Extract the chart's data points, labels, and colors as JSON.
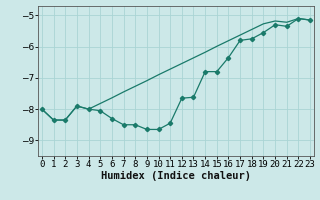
{
  "xlabel": "Humidex (Indice chaleur)",
  "background_color": "#cce8e8",
  "grid_color": "#aad4d4",
  "line_color": "#1a7a6a",
  "x_data": [
    0,
    1,
    2,
    3,
    4,
    5,
    6,
    7,
    8,
    9,
    10,
    11,
    12,
    13,
    14,
    15,
    16,
    17,
    18,
    19,
    20,
    21,
    22,
    23
  ],
  "y_line1": [
    -8.0,
    -8.35,
    -8.35,
    -7.9,
    -8.0,
    -8.05,
    -8.3,
    -8.5,
    -8.5,
    -8.65,
    -8.65,
    -8.45,
    -7.65,
    -7.62,
    -6.8,
    -6.8,
    -6.35,
    -5.8,
    -5.75,
    -5.55,
    -5.3,
    -5.35,
    -5.1,
    -5.15
  ],
  "y_line2": [
    -8.0,
    -8.35,
    -8.35,
    -7.9,
    -8.0,
    -7.82,
    -7.64,
    -7.45,
    -7.27,
    -7.09,
    -6.9,
    -6.72,
    -6.54,
    -6.36,
    -6.18,
    -5.99,
    -5.81,
    -5.63,
    -5.45,
    -5.27,
    -5.18,
    -5.22,
    -5.1,
    -5.15
  ],
  "ylim": [
    -9.5,
    -4.7
  ],
  "xlim": [
    -0.3,
    23.3
  ],
  "yticks": [
    -9,
    -8,
    -7,
    -6,
    -5
  ],
  "figsize": [
    3.2,
    2.0
  ],
  "dpi": 100,
  "tick_fontsize": 6.5,
  "xlabel_fontsize": 7.5
}
